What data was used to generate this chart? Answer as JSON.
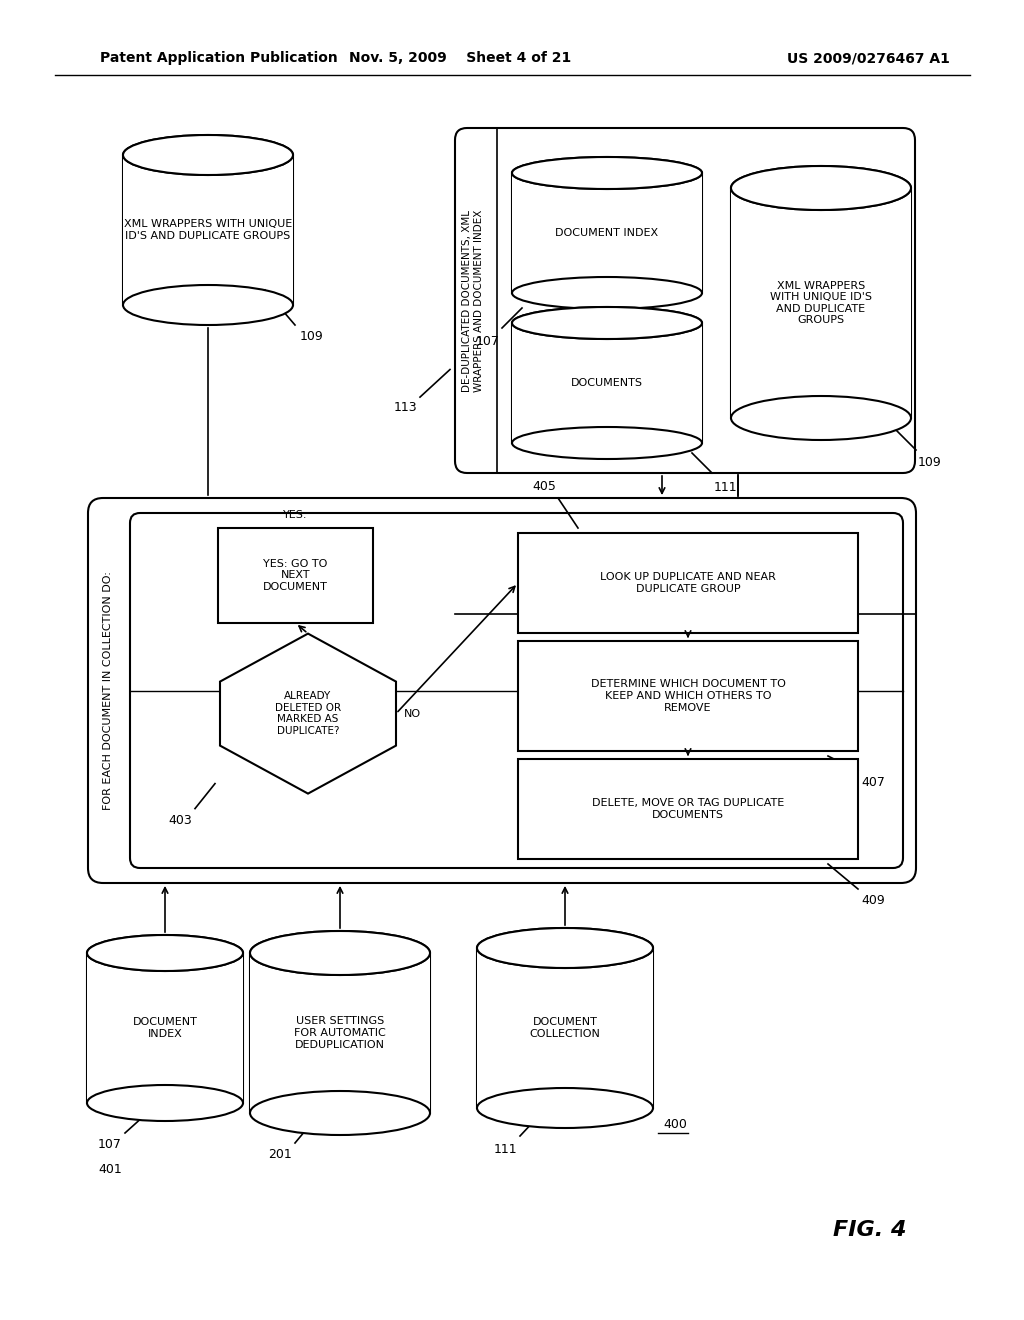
{
  "title_left": "Patent Application Publication",
  "title_mid": "Nov. 5, 2009    Sheet 4 of 21",
  "title_right": "US 2009/0276467 A1",
  "fig_label": "FIG. 4",
  "background": "#ffffff",
  "line_color": "#000000"
}
